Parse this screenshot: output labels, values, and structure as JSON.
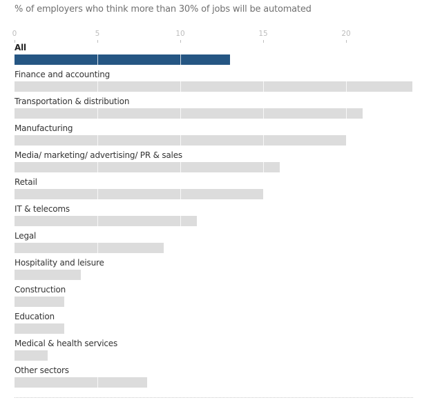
{
  "chart_data": {
    "type": "bar",
    "orientation": "horizontal",
    "title": "% of employers who think more than 30% of jobs will be automated",
    "xlabel": "",
    "ylabel": "",
    "xlim": [
      0,
      24
    ],
    "xticks": [
      0,
      5,
      10,
      15,
      20
    ],
    "grid": true,
    "highlight_color": "#255683",
    "bar_color": "#dcdcdc",
    "categories": [
      "All",
      "Finance and accounting",
      "Transportation & distribution",
      "Manufacturing",
      "Media/ marketing/ advertising/ PR & sales",
      "Retail",
      "IT & telecoms",
      "Legal",
      "Hospitality and leisure",
      "Construction",
      "Education",
      "Medical & health services",
      "Other sectors"
    ],
    "values": [
      13,
      24,
      21,
      20,
      16,
      15,
      11,
      9,
      4,
      3,
      3,
      2,
      8
    ],
    "highlighted": [
      "All"
    ]
  }
}
